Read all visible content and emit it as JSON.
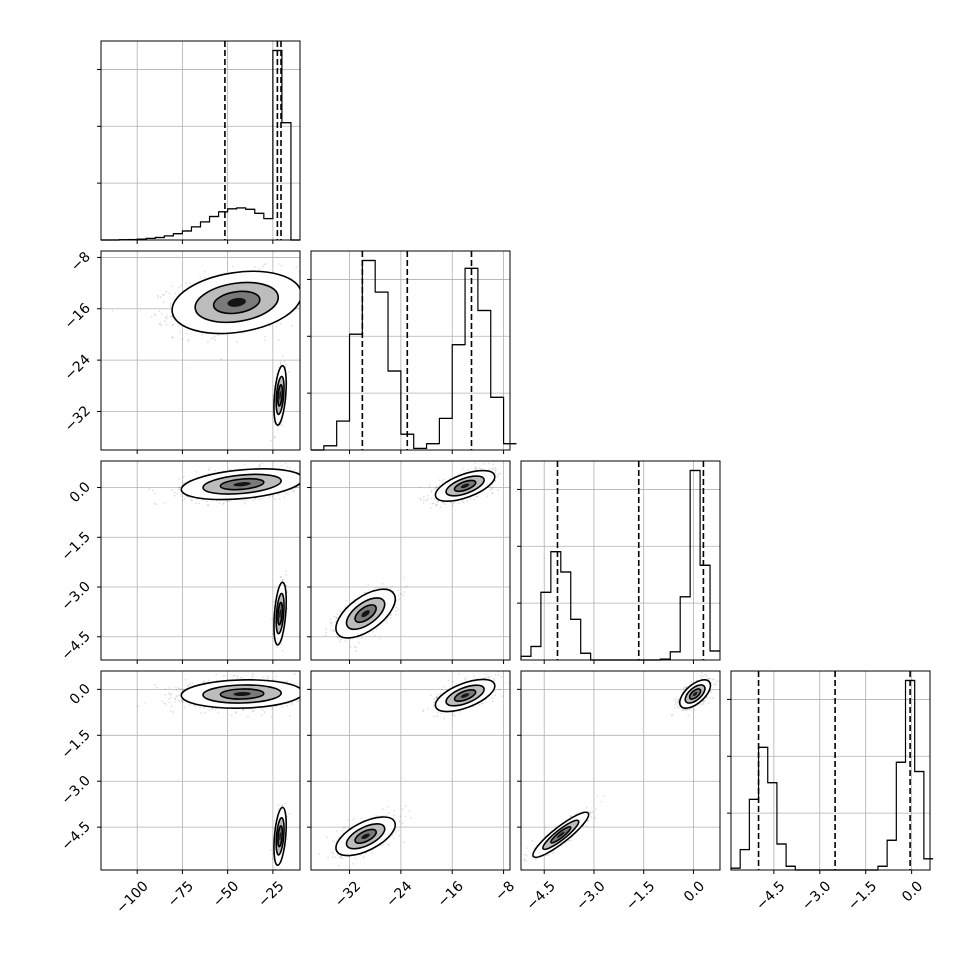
{
  "chart_data": {
    "type": "corner",
    "title": "",
    "parameters": [
      {
        "label": "",
        "range": [
          -120,
          -10
        ],
        "ticks": [
          -100,
          -75,
          -50,
          -25
        ],
        "tick_labels": [
          "−100",
          "−75",
          "−50",
          "−25"
        ],
        "quantiles": [
          -51.5,
          -22.5,
          -20.5
        ]
      },
      {
        "label": "",
        "range": [
          -38,
          -7
        ],
        "ticks": [
          -32,
          -24,
          -16,
          -8
        ],
        "tick_labels": [
          "−32",
          "−24",
          "−16",
          "−8"
        ],
        "quantiles": [
          -30.0,
          -23.0,
          -13.0
        ]
      },
      {
        "label": "",
        "range": [
          -5.2,
          0.8
        ],
        "ticks": [
          -4.5,
          -3.0,
          -1.5,
          0.0
        ],
        "tick_labels": [
          "−4.5",
          "−3.0",
          "−1.5",
          "0.0"
        ],
        "quantiles": [
          -4.1,
          -1.65,
          0.3
        ]
      },
      {
        "label": "",
        "range": [
          -5.9,
          0.6
        ],
        "ticks": [
          -4.5,
          -3.0,
          -1.5,
          0.0
        ],
        "tick_labels": [
          "−4.5",
          "−3.0",
          "−1.5",
          "0.0"
        ],
        "quantiles": [
          -5.0,
          -2.5,
          -0.05
        ]
      }
    ],
    "histograms": [
      {
        "param": 0,
        "bins": [
          {
            "x": -117.5,
            "count": 0
          },
          {
            "x": -112.5,
            "count": 0
          },
          {
            "x": -107.5,
            "count": 1
          },
          {
            "x": -102.5,
            "count": 2
          },
          {
            "x": -97.5,
            "count": 4
          },
          {
            "x": -92.5,
            "count": 7
          },
          {
            "x": -87.5,
            "count": 11
          },
          {
            "x": -82.5,
            "count": 18
          },
          {
            "x": -77.5,
            "count": 28
          },
          {
            "x": -72.5,
            "count": 40
          },
          {
            "x": -67.5,
            "count": 58
          },
          {
            "x": -62.5,
            "count": 80
          },
          {
            "x": -57.5,
            "count": 104
          },
          {
            "x": -52.5,
            "count": 125
          },
          {
            "x": -47.5,
            "count": 138
          },
          {
            "x": -42.5,
            "count": 142
          },
          {
            "x": -37.5,
            "count": 136
          },
          {
            "x": -32.5,
            "count": 118
          },
          {
            "x": -27.5,
            "count": 95
          },
          {
            "x": -22.5,
            "count": 840
          },
          {
            "x": -17.5,
            "count": 520
          },
          {
            "x": -12.5,
            "count": 0
          }
        ]
      },
      {
        "param": 1,
        "bins": [
          {
            "x": -37,
            "count": 0
          },
          {
            "x": -35,
            "count": 8
          },
          {
            "x": -33,
            "count": 55
          },
          {
            "x": -31,
            "count": 220
          },
          {
            "x": -29,
            "count": 360
          },
          {
            "x": -27,
            "count": 300
          },
          {
            "x": -25,
            "count": 150
          },
          {
            "x": -23,
            "count": 30
          },
          {
            "x": -21,
            "count": 3
          },
          {
            "x": -19,
            "count": 12
          },
          {
            "x": -17,
            "count": 60
          },
          {
            "x": -15,
            "count": 200
          },
          {
            "x": -13,
            "count": 345
          },
          {
            "x": -11,
            "count": 265
          },
          {
            "x": -9,
            "count": 100
          },
          {
            "x": -7,
            "count": 12
          }
        ]
      },
      {
        "param": 2,
        "bins": [
          {
            "x": -5.05,
            "count": 8
          },
          {
            "x": -4.75,
            "count": 30
          },
          {
            "x": -4.45,
            "count": 150
          },
          {
            "x": -4.15,
            "count": 240
          },
          {
            "x": -3.85,
            "count": 195
          },
          {
            "x": -3.55,
            "count": 90
          },
          {
            "x": -3.25,
            "count": 15
          },
          {
            "x": -2.95,
            "count": 0
          },
          {
            "x": -2.65,
            "count": 0
          },
          {
            "x": -2.35,
            "count": 0
          },
          {
            "x": -2.05,
            "count": 0
          },
          {
            "x": -1.75,
            "count": 0
          },
          {
            "x": -1.45,
            "count": 0
          },
          {
            "x": -1.15,
            "count": 0
          },
          {
            "x": -0.85,
            "count": 2
          },
          {
            "x": -0.55,
            "count": 18
          },
          {
            "x": -0.25,
            "count": 140
          },
          {
            "x": 0.05,
            "count": 420
          },
          {
            "x": 0.35,
            "count": 210
          },
          {
            "x": 0.65,
            "count": 20
          }
        ]
      },
      {
        "param": 3,
        "bins": [
          {
            "x": -5.75,
            "count": 5
          },
          {
            "x": -5.45,
            "count": 55
          },
          {
            "x": -5.15,
            "count": 190
          },
          {
            "x": -4.85,
            "count": 330
          },
          {
            "x": -4.55,
            "count": 235
          },
          {
            "x": -4.25,
            "count": 70
          },
          {
            "x": -3.95,
            "count": 10
          },
          {
            "x": -3.65,
            "count": 0
          },
          {
            "x": -3.35,
            "count": 0
          },
          {
            "x": -3.05,
            "count": 0
          },
          {
            "x": -2.75,
            "count": 0
          },
          {
            "x": -2.45,
            "count": 0
          },
          {
            "x": -2.15,
            "count": 0
          },
          {
            "x": -1.85,
            "count": 0
          },
          {
            "x": -1.55,
            "count": 0
          },
          {
            "x": -1.25,
            "count": 0
          },
          {
            "x": -0.95,
            "count": 10
          },
          {
            "x": -0.65,
            "count": 80
          },
          {
            "x": -0.35,
            "count": 290
          },
          {
            "x": -0.05,
            "count": 510
          },
          {
            "x": 0.25,
            "count": 265
          },
          {
            "x": 0.55,
            "count": 30
          }
        ]
      }
    ],
    "joint_modes": [
      {
        "x_param": 0,
        "y_param": 1,
        "modes": [
          {
            "center": [
              -45,
              -15
            ],
            "spread": [
              17,
              2.3
            ],
            "corr": 0.25,
            "weight": 0.8
          },
          {
            "center": [
              -21,
              -29.5
            ],
            "spread": [
              1.6,
              2.2
            ],
            "corr": 0.4,
            "weight": 0.2
          }
        ]
      },
      {
        "x_param": 0,
        "y_param": 2,
        "modes": [
          {
            "center": [
              -42,
              0.1
            ],
            "spread": [
              16,
              0.22
            ],
            "corr": 0.35,
            "weight": 0.8
          },
          {
            "center": [
              -21,
              -3.8
            ],
            "spread": [
              1.6,
              0.45
            ],
            "corr": 0.4,
            "weight": 0.2
          }
        ]
      },
      {
        "x_param": 0,
        "y_param": 3,
        "modes": [
          {
            "center": [
              -42,
              -0.15
            ],
            "spread": [
              16,
              0.22
            ],
            "corr": 0.1,
            "weight": 0.8
          },
          {
            "center": [
              -21,
              -4.8
            ],
            "spread": [
              1.6,
              0.45
            ],
            "corr": 0.4,
            "weight": 0.2
          }
        ]
      },
      {
        "x_param": 1,
        "y_param": 2,
        "modes": [
          {
            "center": [
              -14,
              0.05
            ],
            "spread": [
              2.2,
              0.22
            ],
            "corr": 0.6,
            "weight": 0.55
          },
          {
            "center": [
              -29.5,
              -3.8
            ],
            "spread": [
              2.2,
              0.35
            ],
            "corr": 0.6,
            "weight": 0.45
          }
        ]
      },
      {
        "x_param": 1,
        "y_param": 3,
        "modes": [
          {
            "center": [
              -14,
              -0.2
            ],
            "spread": [
              2.2,
              0.25
            ],
            "corr": 0.6,
            "weight": 0.55
          },
          {
            "center": [
              -29.5,
              -4.8
            ],
            "spread": [
              2.2,
              0.3
            ],
            "corr": 0.6,
            "weight": 0.45
          }
        ]
      },
      {
        "x_param": 2,
        "y_param": 3,
        "modes": [
          {
            "center": [
              0.05,
              -0.15
            ],
            "spread": [
              0.22,
              0.22
            ],
            "corr": 0.6,
            "weight": 0.55
          },
          {
            "center": [
              -4.0,
              -4.75
            ],
            "spread": [
              0.4,
              0.35
            ],
            "corr": 0.9,
            "weight": 0.45
          }
        ]
      }
    ],
    "grid": true,
    "colors": {
      "hist": "#000000",
      "scatter": "#000000",
      "contour_line": "#000000",
      "fill_light": "#ffffff",
      "fill_mid": "#bcbcbc",
      "fill_dark": "#7a7a7a",
      "fill_core": "#141414",
      "axis": "#000000",
      "grid": "#b0b0b0"
    }
  }
}
